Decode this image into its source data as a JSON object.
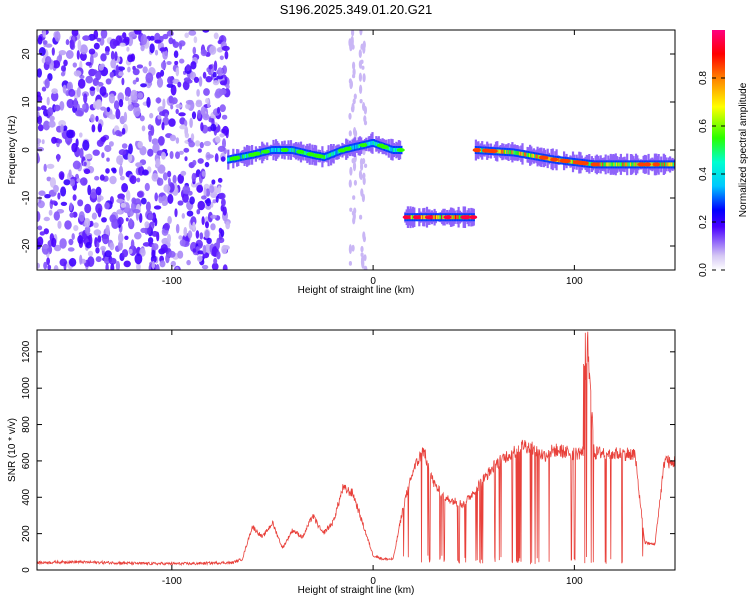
{
  "title": "S196.2025.349.01.20.G21",
  "chart_data": [
    {
      "type": "heatmap",
      "name": "spectrogram",
      "xlabel": "Height of straight line (km)",
      "ylabel": "Frequency (Hz)",
      "xlim": [
        -167,
        150
      ],
      "ylim": [
        -25,
        25
      ],
      "xticks": [
        -100,
        0,
        100
      ],
      "yticks": [
        -20,
        -10,
        0,
        10,
        20
      ],
      "colorbar": {
        "label": "Normalized spectral amplitude",
        "range": [
          0,
          1
        ],
        "ticks": [
          0.0,
          0.2,
          0.4,
          0.6,
          0.8
        ]
      },
      "noise_region": {
        "x": [
          -167,
          -72
        ],
        "y": [
          -25,
          25
        ]
      },
      "ridges": [
        {
          "x": [
            -72,
            -60,
            -50,
            -40,
            -30,
            -24,
            -15,
            -5,
            0,
            10,
            14
          ],
          "freq": [
            -2,
            -1,
            0,
            0,
            -1,
            -1.5,
            0,
            1,
            1.5,
            0,
            0
          ],
          "amplitude": 0.55
        },
        {
          "x": [
            16,
            50
          ],
          "freq": [
            -14,
            -14
          ],
          "amplitude": 0.95
        },
        {
          "x": [
            51,
            70,
            90,
            110,
            130,
            150
          ],
          "freq": [
            0,
            -0.5,
            -2,
            -3,
            -3,
            -3
          ],
          "amplitude": 0.85
        }
      ]
    },
    {
      "type": "line",
      "name": "snr",
      "xlabel": "Height of straight line (km)",
      "ylabel": "SNR (10 * v/v)",
      "xlim": [
        -167,
        150
      ],
      "ylim": [
        0,
        1320
      ],
      "xticks": [
        -100,
        0,
        100
      ],
      "yticks": [
        0,
        200,
        400,
        600,
        800,
        1000,
        1200
      ],
      "color": "#e8403a",
      "series": [
        {
          "name": "SNR",
          "x": [
            -167,
            -150,
            -130,
            -110,
            -90,
            -75,
            -70,
            -65,
            -60,
            -55,
            -50,
            -45,
            -40,
            -35,
            -30,
            -25,
            -20,
            -15,
            -10,
            -5,
            0,
            5,
            10,
            15,
            20,
            25,
            30,
            35,
            40,
            45,
            50,
            55,
            60,
            65,
            70,
            75,
            80,
            85,
            90,
            95,
            100,
            105,
            106,
            110,
            115,
            120,
            125,
            130,
            135,
            140,
            145,
            148,
            150
          ],
          "y": [
            40,
            45,
            40,
            35,
            35,
            40,
            40,
            60,
            240,
            180,
            260,
            120,
            220,
            180,
            300,
            200,
            260,
            450,
            420,
            250,
            80,
            60,
            60,
            350,
            550,
            660,
            480,
            400,
            380,
            360,
            430,
            500,
            570,
            620,
            650,
            690,
            660,
            630,
            660,
            650,
            640,
            650,
            1300,
            640,
            650,
            640,
            640,
            640,
            150,
            140,
            620,
            580,
            600
          ]
        }
      ]
    }
  ]
}
